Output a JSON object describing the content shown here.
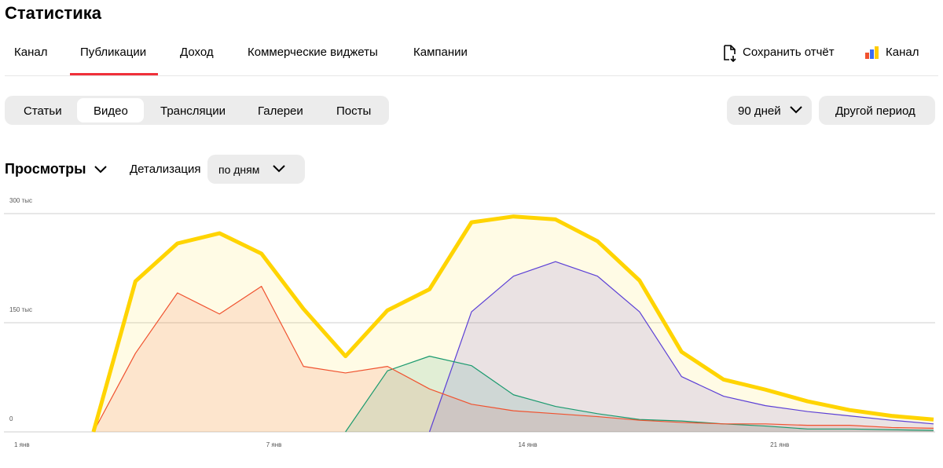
{
  "header": {
    "title": "Статистика"
  },
  "nav": {
    "tabs": [
      "Канал",
      "Публикации",
      "Доход",
      "Коммерческие виджеты",
      "Кампании"
    ],
    "actions": [
      "Сохранить отчёт",
      "Канал"
    ]
  },
  "content_tabs": [
    "Статьи",
    "Видео",
    "Трансляции",
    "Галереи",
    "Посты"
  ],
  "period": {
    "range": "90 дней",
    "other": "Другой период"
  },
  "metric": {
    "name": "Просмотры",
    "detail_label": "Детализация",
    "detail_value": "по дням"
  },
  "chart_data": {
    "type": "area",
    "categories": [
      "1 янв",
      null,
      null,
      null,
      null,
      null,
      "7 янв",
      null,
      null,
      null,
      null,
      null,
      "14 янв",
      null,
      null,
      null,
      null,
      null,
      "21 янв",
      null,
      null,
      null,
      null
    ],
    "series": [
      {
        "color": "#ffd400",
        "values": [
          null,
          null,
          0,
          207000,
          259000,
          273000,
          245000,
          169000,
          104000,
          167000,
          196000,
          288000,
          296000,
          292000,
          262000,
          208000,
          110000,
          72000,
          58000,
          42000,
          30000,
          22000,
          17000
        ]
      },
      {
        "color": "#f0522f",
        "values": [
          null,
          null,
          0,
          108000,
          191000,
          162000,
          200000,
          90000,
          81000,
          90000,
          59000,
          38000,
          29000,
          25000,
          21000,
          16000,
          13000,
          11000,
          11000,
          9000,
          9000,
          6000,
          5000
        ]
      },
      {
        "color": "#1a9a6e",
        "values": [
          null,
          null,
          null,
          null,
          null,
          null,
          null,
          null,
          0,
          84000,
          104000,
          91000,
          51000,
          35000,
          25000,
          17000,
          15000,
          11000,
          8000,
          4000,
          4000,
          3000,
          2000
        ]
      },
      {
        "color": "#5b3fd6",
        "values": [
          null,
          null,
          null,
          null,
          null,
          null,
          null,
          null,
          null,
          null,
          0,
          165000,
          214000,
          234000,
          214000,
          165000,
          76000,
          49000,
          36000,
          28000,
          22000,
          16000,
          11000
        ]
      }
    ],
    "ylim": [
      0,
      300000
    ],
    "yticks": [
      0,
      {
        "value": 150000,
        "label": "150 тыс"
      },
      {
        "value": 300000,
        "label": "300 тыс"
      }
    ],
    "grid": true
  }
}
